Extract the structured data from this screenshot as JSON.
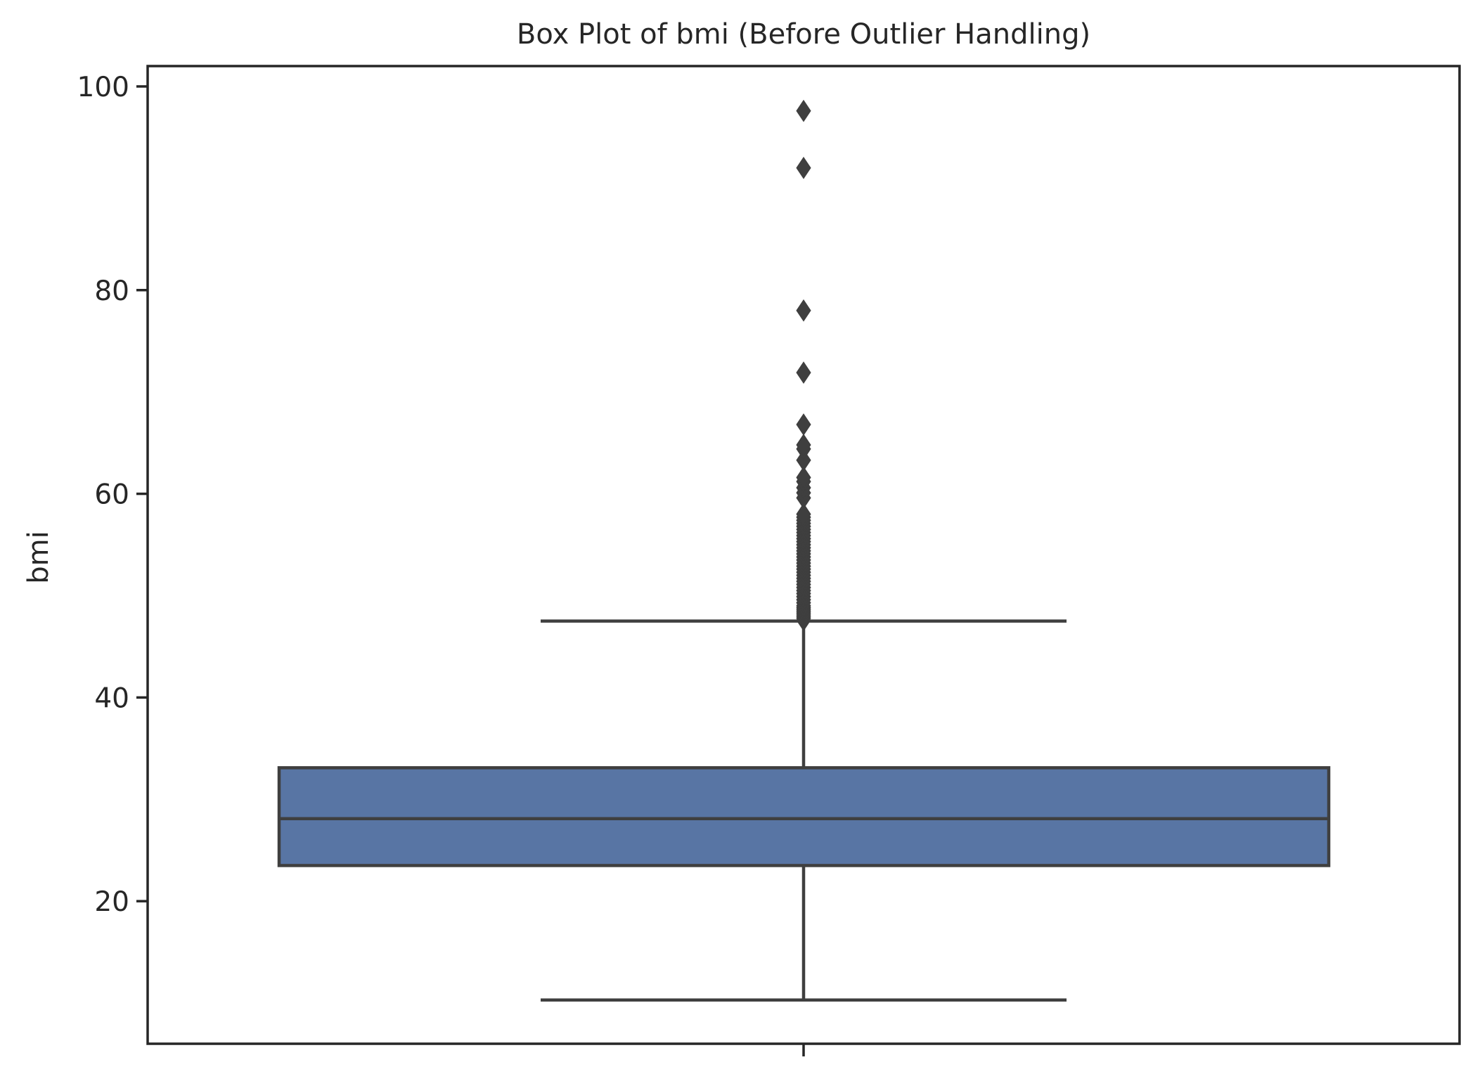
{
  "chart_data": {
    "type": "box",
    "title": "Box Plot of bmi (Before Outlier Handling)",
    "xlabel": "",
    "ylabel": "bmi",
    "ylim": [
      6,
      102
    ],
    "yticks": [
      20,
      40,
      60,
      80,
      100
    ],
    "xticks": [
      ""
    ],
    "grid": false,
    "legend": "none",
    "box": {
      "whisker_low": 10.3,
      "q1": 23.5,
      "median": 28.1,
      "q3": 33.1,
      "whisker_high": 47.5,
      "outliers": [
        47.6,
        47.8,
        48.0,
        48.2,
        48.4,
        48.6,
        48.8,
        49.0,
        49.3,
        49.6,
        49.9,
        50.2,
        50.5,
        50.8,
        51.1,
        51.4,
        51.7,
        52.0,
        52.3,
        52.6,
        52.9,
        53.2,
        53.5,
        53.8,
        54.1,
        54.4,
        54.7,
        55.0,
        55.3,
        55.6,
        55.9,
        56.2,
        56.5,
        56.8,
        57.1,
        57.4,
        57.7,
        58.0,
        59.6,
        60.1,
        60.6,
        61.2,
        61.6,
        63.3,
        64.4,
        64.8,
        66.8,
        71.9,
        78.0,
        92.0,
        97.6
      ]
    },
    "colors": {
      "box_fill": "#5875a4",
      "box_edge": "#3f3f3f",
      "axes": "#262626"
    }
  }
}
